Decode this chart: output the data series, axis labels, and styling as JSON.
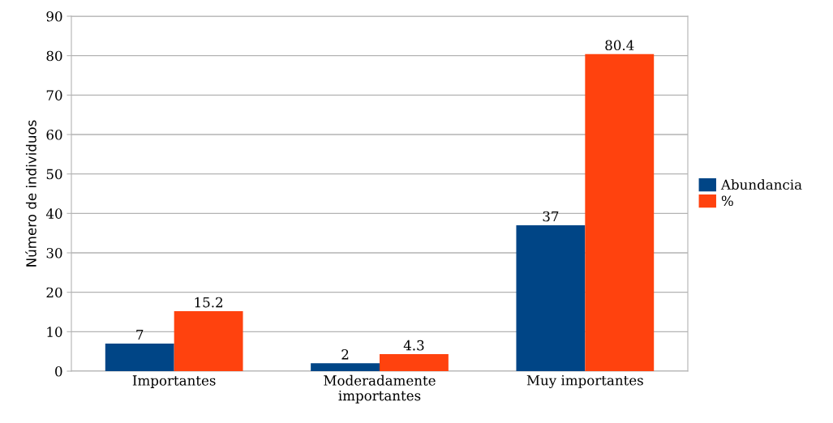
{
  "chart_data": {
    "type": "bar",
    "ylabel": "Número de individuos",
    "categories": [
      "Importantes",
      "Moderadamente\nimportantes",
      "Muy importantes"
    ],
    "series": [
      {
        "name": "Abundancia",
        "color": "#004586",
        "values": [
          7,
          2,
          37
        ]
      },
      {
        "name": "%",
        "color": "#ff420e",
        "values": [
          15.2,
          4.3,
          80.4
        ]
      }
    ],
    "ylim": [
      0,
      90
    ],
    "yticks": [
      0,
      10,
      20,
      30,
      40,
      50,
      60,
      70,
      80,
      90
    ],
    "grid": "y",
    "legend": "right",
    "data_labels": true
  }
}
